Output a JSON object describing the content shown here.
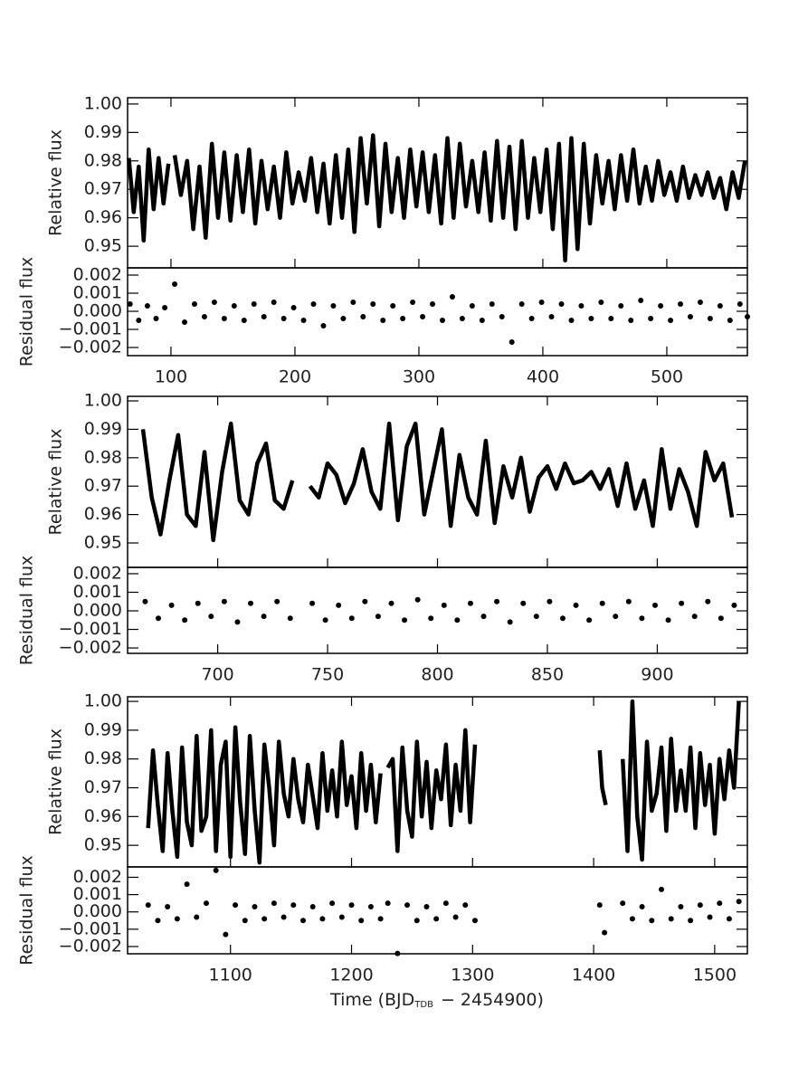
{
  "chart_data": [
    {
      "type": "line",
      "ylabel": "Relative flux",
      "color": "#000000",
      "xlim": [
        65,
        565
      ],
      "ylim": [
        0.9424,
        1.0022
      ],
      "yticks": [
        {
          "value": 1,
          "label": "1.00"
        },
        0.99,
        0.98,
        0.97,
        0.96,
        0.95
      ],
      "x": [
        66,
        70,
        74,
        78,
        82,
        86,
        90,
        94,
        98,
        null,
        103,
        108,
        113,
        118,
        123,
        128,
        133,
        138,
        143,
        148,
        153,
        158,
        163,
        168,
        173,
        178,
        183,
        188,
        193,
        198,
        203,
        208,
        213,
        218,
        223,
        228,
        233,
        238,
        243,
        248,
        253,
        258,
        263,
        268,
        273,
        278,
        283,
        288,
        293,
        298,
        303,
        308,
        313,
        318,
        323,
        328,
        333,
        338,
        343,
        348,
        353,
        358,
        363,
        368,
        373,
        378,
        383,
        388,
        393,
        398,
        403,
        408,
        413,
        418,
        423,
        428,
        433,
        438,
        443,
        448,
        453,
        458,
        463,
        468,
        473,
        478,
        483,
        488,
        493,
        498,
        503,
        508,
        513,
        518,
        523,
        528,
        533,
        538,
        543,
        548,
        553,
        558,
        563
      ],
      "values": [
        0.981,
        0.962,
        0.978,
        0.952,
        0.984,
        0.963,
        0.981,
        0.965,
        0.979,
        null,
        0.982,
        0.968,
        0.98,
        0.956,
        0.978,
        0.953,
        0.986,
        0.96,
        0.983,
        0.959,
        0.982,
        0.962,
        0.984,
        0.958,
        0.98,
        0.963,
        0.978,
        0.96,
        0.983,
        0.965,
        0.976,
        0.966,
        0.981,
        0.962,
        0.979,
        0.958,
        0.982,
        0.96,
        0.984,
        0.955,
        0.988,
        0.965,
        0.989,
        0.957,
        0.986,
        0.962,
        0.981,
        0.96,
        0.984,
        0.964,
        0.983,
        0.962,
        0.982,
        0.958,
        0.988,
        0.96,
        0.986,
        0.964,
        0.98,
        0.962,
        0.983,
        0.959,
        0.987,
        0.96,
        0.985,
        0.956,
        0.987,
        0.96,
        0.981,
        0.962,
        0.984,
        0.956,
        0.986,
        0.945,
        0.988,
        0.949,
        0.986,
        0.958,
        0.982,
        0.965,
        0.98,
        0.963,
        0.982,
        0.966,
        0.984,
        0.965,
        0.978,
        0.966,
        0.98,
        0.968,
        0.976,
        0.966,
        0.978,
        0.967,
        0.975,
        0.968,
        0.976,
        0.967,
        0.974,
        0.963,
        0.976,
        0.967,
        0.98
      ]
    },
    {
      "type": "scatter",
      "ylabel": "Residual flux",
      "color": "#000000",
      "xlim": [
        65,
        565
      ],
      "ylim": [
        -0.00245,
        0.0024
      ],
      "yticks": [
        0.002,
        0.001,
        {
          "value": 0,
          "label": "0.000"
        },
        {
          "value": -0.001,
          "label": "−0.001"
        },
        {
          "value": -0.002,
          "label": "−0.002"
        }
      ],
      "xticks": [
        100,
        200,
        300,
        400,
        500
      ],
      "x": [
        67,
        74,
        81,
        88,
        95,
        103,
        111,
        119,
        127,
        135,
        143,
        151,
        159,
        167,
        175,
        183,
        191,
        199,
        207,
        215,
        223,
        231,
        239,
        247,
        255,
        263,
        271,
        279,
        287,
        295,
        303,
        311,
        319,
        327,
        335,
        343,
        351,
        359,
        367,
        375,
        383,
        391,
        399,
        407,
        415,
        423,
        431,
        439,
        447,
        455,
        463,
        471,
        479,
        487,
        495,
        503,
        511,
        519,
        527,
        535,
        543,
        551,
        559,
        565
      ],
      "values": [
        0.0004,
        -0.0005,
        0.0003,
        -0.0004,
        0.0002,
        0.0015,
        -0.0006,
        0.0004,
        -0.0003,
        0.0005,
        -0.0004,
        0.0003,
        -0.0005,
        0.0004,
        -0.0003,
        0.0005,
        -0.0004,
        0.0002,
        -0.0005,
        0.0004,
        -0.0008,
        0.0003,
        -0.0004,
        0.0005,
        -0.0003,
        0.0004,
        -0.0005,
        0.0003,
        -0.0004,
        0.0005,
        -0.0003,
        0.0004,
        -0.0005,
        0.0008,
        -0.0004,
        0.0003,
        -0.0005,
        0.0004,
        -0.0003,
        -0.0017,
        0.0004,
        -0.0004,
        0.0005,
        -0.0003,
        0.0004,
        -0.0005,
        0.0003,
        -0.0004,
        0.0005,
        -0.0004,
        0.0003,
        -0.0005,
        0.0006,
        -0.0004,
        0.0003,
        -0.0005,
        0.0004,
        -0.0003,
        0.0005,
        -0.0004,
        0.0003,
        -0.0005,
        0.0004,
        -0.0003
      ]
    },
    {
      "type": "line",
      "ylabel": "Relative flux",
      "color": "#000000",
      "xlim": [
        659,
        941
      ],
      "ylim": [
        0.9414,
        1.0016
      ],
      "yticks": [
        {
          "value": 1,
          "label": "1.00"
        },
        0.99,
        0.98,
        0.97,
        0.96,
        0.95
      ],
      "x": [
        666,
        670,
        674,
        678,
        682,
        686,
        690,
        694,
        698,
        702,
        706,
        710,
        714,
        718,
        722,
        726,
        730,
        734,
        null,
        742,
        746,
        750,
        754,
        758,
        762,
        766,
        770,
        774,
        778,
        782,
        786,
        790,
        794,
        798,
        802,
        806,
        810,
        814,
        818,
        822,
        826,
        830,
        834,
        838,
        842,
        846,
        850,
        854,
        858,
        862,
        866,
        870,
        874,
        878,
        882,
        886,
        890,
        894,
        898,
        902,
        906,
        910,
        914,
        918,
        922,
        926,
        930,
        934
      ],
      "values": [
        0.99,
        0.966,
        0.953,
        0.972,
        0.988,
        0.96,
        0.956,
        0.982,
        0.951,
        0.975,
        0.992,
        0.965,
        0.96,
        0.978,
        0.985,
        0.965,
        0.962,
        0.972,
        null,
        0.97,
        0.966,
        0.978,
        0.974,
        0.964,
        0.971,
        0.983,
        0.968,
        0.962,
        0.992,
        0.958,
        0.984,
        0.992,
        0.96,
        0.975,
        0.99,
        0.956,
        0.981,
        0.966,
        0.96,
        0.986,
        0.957,
        0.977,
        0.966,
        0.98,
        0.961,
        0.973,
        0.977,
        0.969,
        0.978,
        0.971,
        0.972,
        0.975,
        0.969,
        0.976,
        0.963,
        0.978,
        0.962,
        0.972,
        0.956,
        0.983,
        0.962,
        0.976,
        0.968,
        0.956,
        0.982,
        0.972,
        0.978,
        0.959
      ]
    },
    {
      "type": "scatter",
      "ylabel": "Residual flux",
      "color": "#000000",
      "xlim": [
        659,
        941
      ],
      "ylim": [
        -0.00229,
        0.00234
      ],
      "yticks": [
        0.002,
        0.001,
        {
          "value": 0,
          "label": "0.000"
        },
        {
          "value": -0.001,
          "label": "−0.001"
        },
        {
          "value": -0.002,
          "label": "−0.002"
        }
      ],
      "xticks": [
        700,
        750,
        800,
        850,
        900
      ],
      "x": [
        667,
        673,
        679,
        685,
        691,
        697,
        703,
        709,
        715,
        721,
        727,
        733,
        743,
        749,
        755,
        761,
        767,
        773,
        779,
        785,
        791,
        797,
        803,
        809,
        815,
        821,
        827,
        833,
        839,
        845,
        851,
        857,
        863,
        869,
        875,
        881,
        887,
        893,
        899,
        905,
        911,
        917,
        923,
        929,
        935
      ],
      "values": [
        0.0005,
        -0.0004,
        0.0003,
        -0.0005,
        0.0004,
        -0.0003,
        0.0005,
        -0.0006,
        0.0004,
        -0.0003,
        0.0005,
        -0.0004,
        0.0004,
        -0.0005,
        0.0003,
        -0.0004,
        0.0005,
        -0.0003,
        0.0004,
        -0.0005,
        0.0006,
        -0.0004,
        0.0003,
        -0.0005,
        0.0004,
        -0.0003,
        0.0005,
        -0.0006,
        0.0004,
        -0.0003,
        0.0005,
        -0.0004,
        0.0003,
        -0.0005,
        0.0004,
        -0.0003,
        0.0005,
        -0.0004,
        0.0003,
        -0.0005,
        0.0004,
        -0.0003,
        0.0005,
        -0.0004,
        0.0003
      ]
    },
    {
      "type": "line",
      "ylabel": "Relative flux",
      "color": "#000000",
      "xlim": [
        1015,
        1527
      ],
      "ylim": [
        0.9425,
        1.0016
      ],
      "yticks": [
        {
          "value": 1,
          "label": "1.00"
        },
        0.99,
        0.98,
        0.97,
        0.96,
        0.95
      ],
      "x": [
        1032,
        1036,
        1040,
        1044,
        1048,
        1052,
        1056,
        1060,
        1064,
        1068,
        1072,
        1076,
        1080,
        1084,
        1088,
        1092,
        1096,
        1100,
        1104,
        1108,
        1112,
        1116,
        1120,
        1124,
        1128,
        1132,
        1136,
        1140,
        1144,
        1148,
        1152,
        1156,
        1160,
        1164,
        1168,
        1172,
        1176,
        1180,
        1184,
        1188,
        1192,
        1196,
        1200,
        1204,
        1208,
        1212,
        1216,
        1220,
        1224,
        null,
        1230,
        1234,
        1238,
        1242,
        1246,
        1250,
        1254,
        1258,
        1262,
        1266,
        1270,
        1274,
        1278,
        1282,
        1286,
        1290,
        1294,
        1298,
        1302,
        null,
        1405,
        1407,
        1410,
        null,
        1424,
        1428,
        1432,
        1436,
        1440,
        1444,
        1448,
        1452,
        1456,
        1460,
        1464,
        1468,
        1472,
        1476,
        1480,
        1484,
        1488,
        1492,
        1496,
        1500,
        1504,
        1508,
        1512,
        1516,
        1520
      ],
      "values": [
        0.956,
        0.983,
        0.964,
        0.948,
        0.982,
        0.962,
        0.946,
        0.984,
        0.958,
        0.95,
        0.988,
        0.955,
        0.96,
        0.99,
        0.948,
        0.978,
        0.986,
        0.946,
        0.991,
        0.965,
        0.947,
        0.988,
        0.962,
        0.944,
        0.985,
        0.97,
        0.95,
        0.986,
        0.968,
        0.96,
        0.98,
        0.966,
        0.958,
        0.978,
        0.967,
        0.956,
        0.982,
        0.962,
        0.976,
        0.96,
        0.986,
        0.964,
        0.974,
        0.956,
        0.982,
        0.962,
        0.978,
        0.958,
        0.975,
        null,
        0.977,
        0.98,
        0.948,
        0.984,
        0.962,
        0.953,
        0.986,
        0.96,
        0.979,
        0.956,
        0.976,
        0.966,
        0.985,
        0.957,
        0.978,
        0.962,
        0.99,
        0.958,
        0.985,
        null,
        0.983,
        0.97,
        0.964,
        null,
        0.98,
        0.948,
        1.0,
        0.96,
        0.945,
        0.986,
        0.962,
        0.968,
        0.984,
        0.955,
        0.987,
        0.962,
        0.976,
        0.962,
        0.984,
        0.956,
        0.982,
        0.964,
        0.978,
        0.954,
        0.98,
        0.966,
        0.983,
        0.97,
        1.0
      ]
    },
    {
      "type": "scatter",
      "ylabel": "Residual flux",
      "color": "#000000",
      "xlim": [
        1015,
        1527
      ],
      "ylim": [
        -0.00242,
        0.0026
      ],
      "yticks": [
        0.002,
        0.001,
        {
          "value": 0,
          "label": "0.000"
        },
        {
          "value": -0.001,
          "label": "−0.001"
        },
        {
          "value": -0.002,
          "label": "−0.002"
        }
      ],
      "xticks": [
        1100,
        1200,
        1300,
        1400,
        1500
      ],
      "xlabel": "Time (BJD",
      "xlabel_sub": "TDB",
      "xlabel_tail": "− 2454900)",
      "x": [
        1032,
        1040,
        1048,
        1056,
        1064,
        1072,
        1080,
        1088,
        1096,
        1104,
        1112,
        1120,
        1128,
        1136,
        1144,
        1152,
        1160,
        1168,
        1176,
        1184,
        1192,
        1200,
        1208,
        1216,
        1224,
        1230,
        1238,
        1246,
        1254,
        1262,
        1270,
        1278,
        1286,
        1294,
        1302,
        1405,
        1409,
        1424,
        1432,
        1440,
        1448,
        1456,
        1464,
        1472,
        1480,
        1488,
        1496,
        1504,
        1512,
        1520
      ],
      "values": [
        0.0004,
        -0.0005,
        0.0003,
        -0.0004,
        0.0016,
        -0.0003,
        0.0005,
        0.0024,
        -0.0013,
        0.0004,
        -0.0005,
        0.0003,
        -0.0004,
        0.0005,
        -0.0003,
        0.0004,
        -0.0005,
        0.0003,
        -0.0004,
        0.0005,
        -0.0003,
        0.0004,
        -0.0005,
        0.0003,
        -0.0004,
        0.0005,
        -0.0024,
        0.0004,
        -0.0005,
        0.0003,
        -0.0004,
        0.0005,
        -0.0003,
        0.0004,
        -0.0005,
        0.0004,
        -0.0012,
        0.0005,
        -0.0004,
        0.0003,
        -0.0005,
        0.0013,
        -0.0004,
        0.0003,
        -0.0005,
        0.0004,
        -0.0003,
        0.0005,
        -0.0004,
        0.0006
      ]
    }
  ]
}
